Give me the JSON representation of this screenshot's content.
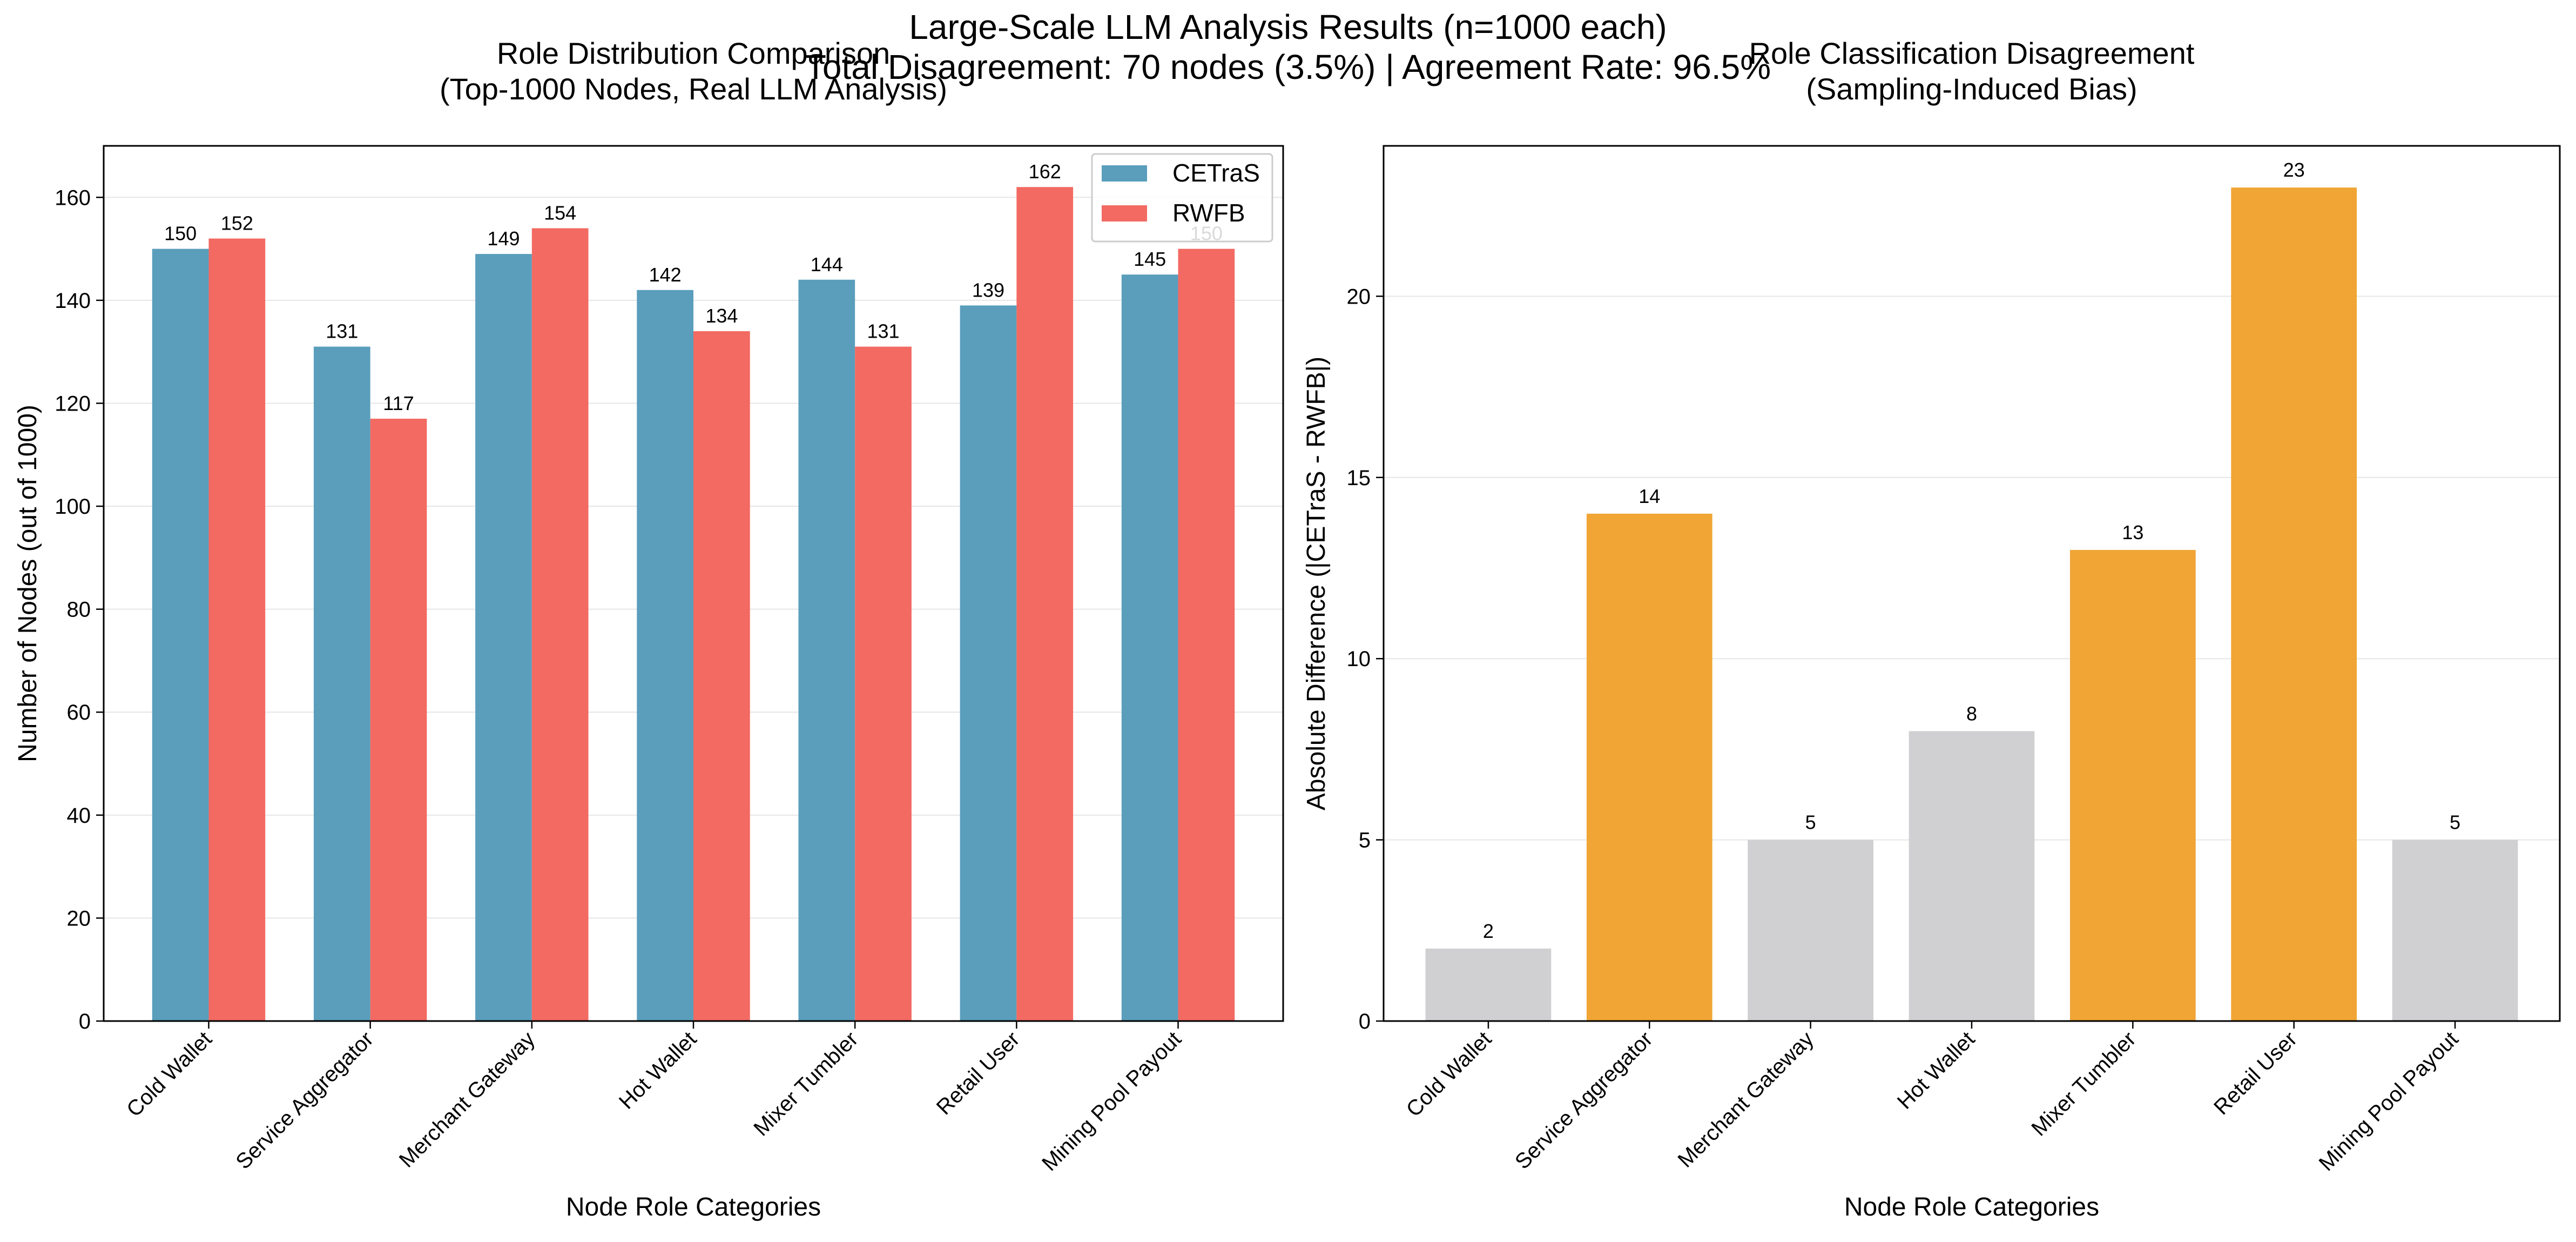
{
  "figure": {
    "suptitle_line1": "Large-Scale LLM Analysis Results (n=1000 each)",
    "suptitle_line2": "Total Disagreement: 70 nodes (3.5%) | Agreement Rate: 96.5%"
  },
  "colors": {
    "cetras": "#5a9ebc",
    "rwfb": "#f26a62",
    "highlight": "#f0a535",
    "neutral": "#d0d0d2",
    "grid": "#e6e6e6"
  },
  "chart_data": [
    {
      "type": "bar",
      "title_line1": "Role Distribution Comparison",
      "title_line2": "(Top-1000 Nodes, Real LLM Analysis)",
      "xlabel": "Node Role Categories",
      "ylabel": "Number of Nodes (out of 1000)",
      "categories": [
        "Cold Wallet",
        "Service Aggregator",
        "Merchant Gateway",
        "Hot Wallet",
        "Mixer Tumbler",
        "Retail User",
        "Mining Pool Payout"
      ],
      "series": [
        {
          "name": "CETraS",
          "values": [
            150,
            131,
            149,
            142,
            144,
            139,
            145
          ]
        },
        {
          "name": "RWFB",
          "values": [
            152,
            117,
            154,
            134,
            131,
            162,
            150
          ]
        }
      ],
      "ylim": [
        0,
        170
      ],
      "yticks": [
        0,
        20,
        40,
        60,
        80,
        100,
        120,
        140,
        160
      ],
      "grid": "y",
      "legend": "top-right"
    },
    {
      "type": "bar",
      "title_line1": "Role Classification Disagreement",
      "title_line2": "(Sampling-Induced Bias)",
      "xlabel": "Node Role Categories",
      "ylabel": "Absolute Difference (|CETraS - RWFB|)",
      "categories": [
        "Cold Wallet",
        "Service Aggregator",
        "Merchant Gateway",
        "Hot Wallet",
        "Mixer Tumbler",
        "Retail User",
        "Mining Pool Payout"
      ],
      "values": [
        2,
        14,
        5,
        8,
        13,
        23,
        5
      ],
      "highlighted": [
        false,
        true,
        false,
        false,
        true,
        true,
        false
      ],
      "ylim": [
        0,
        24.15
      ],
      "yticks": [
        0,
        5,
        10,
        15,
        20
      ],
      "grid": "y"
    }
  ]
}
